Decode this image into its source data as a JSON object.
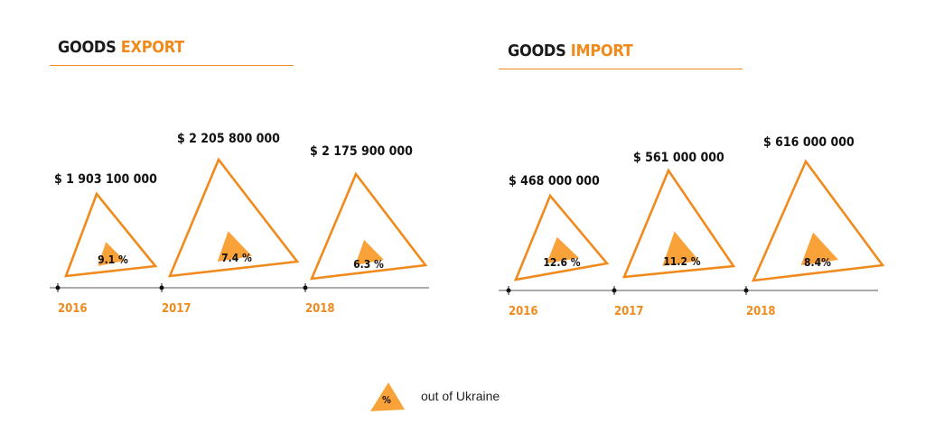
{
  "colors": {
    "accent": "#f08a1c",
    "fill": "#f9a23a",
    "text": "#111111",
    "axis": "#555555"
  },
  "chart_data": [
    {
      "type": "triangle-area",
      "title_main": "GOODS",
      "title_accent": "EXPORT",
      "categories": [
        "2016",
        "2017",
        "2018"
      ],
      "values": [
        1903100000,
        2205800000,
        2175900000
      ],
      "value_labels": [
        "$ 1 903 100 000",
        "$ 2 205 800 000",
        "$ 2 175 900 000"
      ],
      "share_percent": [
        9.1,
        7.4,
        6.3
      ],
      "share_labels": [
        "9.1 %",
        "7.4 %",
        "6.3 %"
      ]
    },
    {
      "type": "triangle-area",
      "title_main": "GOODS",
      "title_accent": "IMPORT",
      "categories": [
        "2016",
        "2017",
        "2018"
      ],
      "values": [
        468000000,
        561000000,
        616000000
      ],
      "value_labels": [
        "$ 468 000 000",
        "$ 561 000 000",
        "$ 616 000 000"
      ],
      "share_percent": [
        12.6,
        11.2,
        8.4
      ],
      "share_labels": [
        "12.6 %",
        "11.2 %",
        "8.4%"
      ]
    }
  ],
  "legend": {
    "symbol": "%",
    "label": "out of Ukraine"
  }
}
